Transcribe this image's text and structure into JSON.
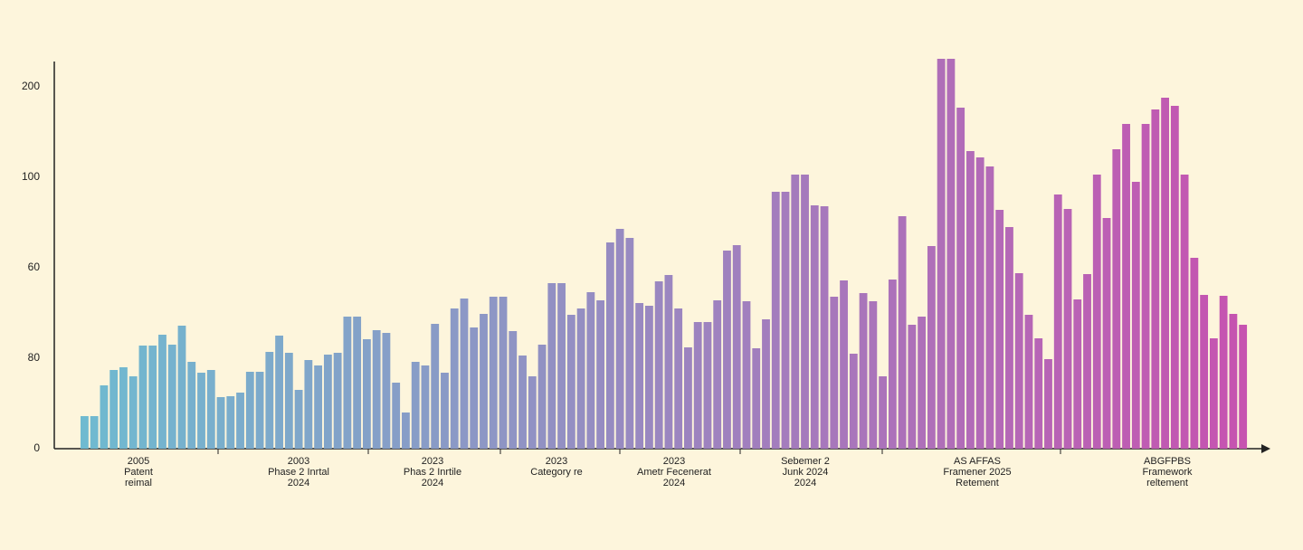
{
  "chart_data": {
    "type": "bar",
    "ylim": [
      0,
      4.4
    ],
    "yticks": [
      {
        "value": 0,
        "label": "0"
      },
      {
        "value": 1,
        "label": "80"
      },
      {
        "value": 2,
        "label": "60"
      },
      {
        "value": 3,
        "label": "100"
      },
      {
        "value": 4,
        "label": "200"
      }
    ],
    "colors": [
      "#6fbad0",
      "#c653b0"
    ],
    "values": [
      0.36,
      0.36,
      0.7,
      0.87,
      0.9,
      0.8,
      1.14,
      1.14,
      1.26,
      1.15,
      1.36,
      0.96,
      0.84,
      0.87,
      0.57,
      0.58,
      0.62,
      0.85,
      0.85,
      1.07,
      1.25,
      1.06,
      0.65,
      0.98,
      0.92,
      1.04,
      1.06,
      1.46,
      1.46,
      1.21,
      1.31,
      1.28,
      0.73,
      0.4,
      0.96,
      0.92,
      1.38,
      0.84,
      1.55,
      1.66,
      1.34,
      1.49,
      1.68,
      1.68,
      1.3,
      1.03,
      0.8,
      1.15,
      1.83,
      1.83,
      1.48,
      1.55,
      1.73,
      1.64,
      2.28,
      2.43,
      2.33,
      1.61,
      1.58,
      1.85,
      1.92,
      1.55,
      1.12,
      1.4,
      1.4,
      1.64,
      2.19,
      2.25,
      1.63,
      1.11,
      1.43,
      2.84,
      2.84,
      3.03,
      3.03,
      2.69,
      2.68,
      1.68,
      1.86,
      1.05,
      1.72,
      1.63,
      0.8,
      1.87,
      2.57,
      1.37,
      1.46,
      2.24,
      4.31,
      4.31,
      3.77,
      3.29,
      3.22,
      3.12,
      2.64,
      2.45,
      1.94,
      1.48,
      1.22,
      0.99,
      2.81,
      2.65,
      1.65,
      1.93,
      3.03,
      2.55,
      3.31,
      3.59,
      2.95,
      3.59,
      3.75,
      3.88,
      3.79,
      3.03,
      2.11,
      1.7,
      1.22,
      1.69,
      1.49,
      1.37
    ],
    "x_labels": [
      [
        "2005",
        "Patent",
        "reimal"
      ],
      [
        "2003",
        "Phase 2 Inrtal",
        "2024"
      ],
      [
        "2023",
        "Phas 2 Inrtile",
        "2024"
      ],
      [
        "2023",
        "Category re"
      ],
      [
        "2023",
        "Ametr Fecenerat",
        "2024"
      ],
      [
        "Sebemer 2",
        "Junk 2024",
        "2024"
      ],
      [
        "AS AFFAS",
        "Framener 2025",
        "Retement"
      ],
      [
        "ABGFPBS",
        "Framework",
        "reltement"
      ]
    ]
  }
}
